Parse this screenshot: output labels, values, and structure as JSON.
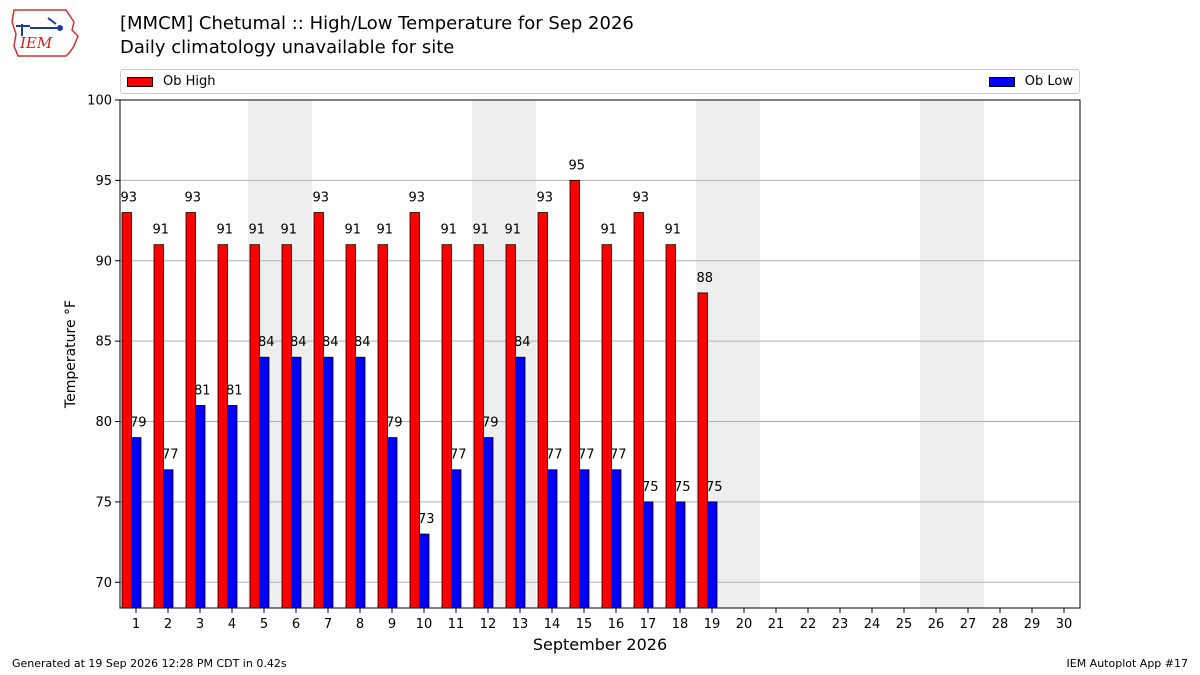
{
  "header": {
    "logo_text": "IEM",
    "title": "[MMCM] Chetumal :: High/Low Temperature for Sep 2026",
    "subtitle": "Daily climatology unavailable for site"
  },
  "legend": {
    "high_label": "Ob High",
    "low_label": "Ob Low"
  },
  "footer": {
    "generated": "Generated at 19 Sep 2026 12:28 PM CDT in 0.42s",
    "app": "IEM Autoplot App #17"
  },
  "colors": {
    "high": "#ff0000",
    "low": "#0000ff",
    "weekend_band": "#eeeeee",
    "grid": "#b0b0b0"
  },
  "chart_data": {
    "type": "bar",
    "title": "[MMCM] Chetumal :: High/Low Temperature for Sep 2026",
    "subtitle": "Daily climatology unavailable for site",
    "xlabel": "September 2026",
    "ylabel": "Temperature °F",
    "categories": [
      "1",
      "2",
      "3",
      "4",
      "5",
      "6",
      "7",
      "8",
      "9",
      "10",
      "11",
      "12",
      "13",
      "14",
      "15",
      "16",
      "17",
      "18",
      "19",
      "20",
      "21",
      "22",
      "23",
      "24",
      "25",
      "26",
      "27",
      "28",
      "29",
      "30"
    ],
    "series": [
      {
        "name": "Ob High",
        "color": "#ff0000",
        "values": [
          93,
          91,
          93,
          91,
          91,
          91,
          93,
          91,
          91,
          93,
          91,
          91,
          91,
          93,
          95,
          91,
          93,
          91,
          88,
          null,
          null,
          null,
          null,
          null,
          null,
          null,
          null,
          null,
          null,
          null
        ]
      },
      {
        "name": "Ob Low",
        "color": "#0000ff",
        "values": [
          79,
          77,
          81,
          81,
          84,
          84,
          84,
          84,
          79,
          73,
          77,
          79,
          84,
          77,
          77,
          77,
          75,
          75,
          75,
          null,
          null,
          null,
          null,
          null,
          null,
          null,
          null,
          null,
          null,
          null
        ]
      }
    ],
    "weekend_days": [
      5,
      6,
      12,
      13,
      19,
      20,
      26,
      27
    ],
    "ylim": [
      68.4,
      100
    ],
    "yticks": [
      70,
      75,
      80,
      85,
      90,
      95,
      100
    ],
    "grid": true,
    "legend_position": "top"
  }
}
